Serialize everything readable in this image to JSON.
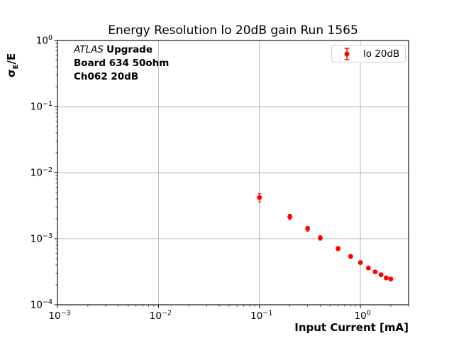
{
  "annotation": {
    "experiment": "ATLAS",
    "experiment_suffix": "Upgrade",
    "line2": "Board 634 50ohm",
    "line3": "Ch062 20dB"
  },
  "chart_data": {
    "type": "scatter",
    "title": "Energy Resolution lo 20dB gain Run 1565",
    "xlabel": "Input Current [mA]",
    "ylabel": "σ_E/E",
    "ylabel_parts": {
      "sigma": "σ",
      "sub": "E",
      "rest": "/E"
    },
    "x_scale": "log",
    "y_scale": "log",
    "xlim": [
      0.001,
      3.0
    ],
    "ylim": [
      0.0001,
      1.0
    ],
    "grid": true,
    "x_tick_exponents": [
      -3,
      -2,
      -1,
      0
    ],
    "y_tick_exponents": [
      0,
      -1,
      -2,
      -3,
      -4
    ],
    "x_tick_labels": [
      "10^-3",
      "10^-2",
      "10^-1",
      "10^0"
    ],
    "y_tick_labels": [
      "10^0",
      "10^-1",
      "10^-2",
      "10^-3",
      "10^-4"
    ],
    "legend": {
      "position": "upper right",
      "entries": [
        {
          "label": "lo 20dB",
          "color": "#ff0000",
          "marker": "errorbar-dot"
        }
      ]
    },
    "series": [
      {
        "name": "lo 20dB",
        "color": "#ff0000",
        "x": [
          0.1,
          0.2,
          0.3,
          0.4,
          0.6,
          0.8,
          1.0,
          1.2,
          1.4,
          1.6,
          1.8,
          2.0
        ],
        "y": [
          0.0042,
          0.00215,
          0.00142,
          0.00103,
          0.00071,
          0.00054,
          0.000435,
          0.00036,
          0.000315,
          0.000285,
          0.000255,
          0.000245
        ],
        "yerr": [
          0.0006,
          0.0002,
          0.00012,
          8e-05,
          5e-05,
          3.5e-05,
          2.5e-05,
          2e-05,
          1.5e-05,
          1.2e-05,
          1e-05,
          1e-05
        ]
      }
    ],
    "colors": {
      "marker": "#ff0000",
      "grid": "#b0b0b0",
      "axis": "#000000",
      "background": "#ffffff"
    }
  }
}
